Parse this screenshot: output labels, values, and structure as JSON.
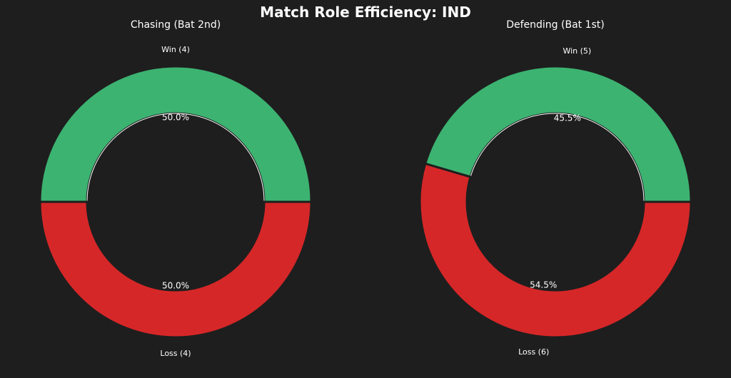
{
  "title": "Match Role Efficiency: IND",
  "background_color": "#1e1e1e",
  "text_color": "#ffffff",
  "chart_data": [
    {
      "type": "pie",
      "style": "donut",
      "title": "Chasing (Bat 2nd)",
      "categories": [
        "Win",
        "Loss"
      ],
      "values": [
        4,
        4
      ],
      "labels": [
        "Win (4)",
        "Loss (4)"
      ],
      "percent_labels": [
        "50.0%",
        "50.0%"
      ],
      "colors": [
        "#3cb371",
        "#d62728"
      ],
      "start_angle_deg": 0,
      "direction": "counterclockwise",
      "legend": "none"
    },
    {
      "type": "pie",
      "style": "donut",
      "title": "Defending (Bat 1st)",
      "categories": [
        "Win",
        "Loss"
      ],
      "values": [
        5,
        6
      ],
      "labels": [
        "Win (5)",
        "Loss (6)"
      ],
      "percent_labels": [
        "45.5%",
        "54.5%"
      ],
      "colors": [
        "#3cb371",
        "#d62728"
      ],
      "start_angle_deg": 0,
      "direction": "counterclockwise",
      "legend": "none"
    }
  ]
}
